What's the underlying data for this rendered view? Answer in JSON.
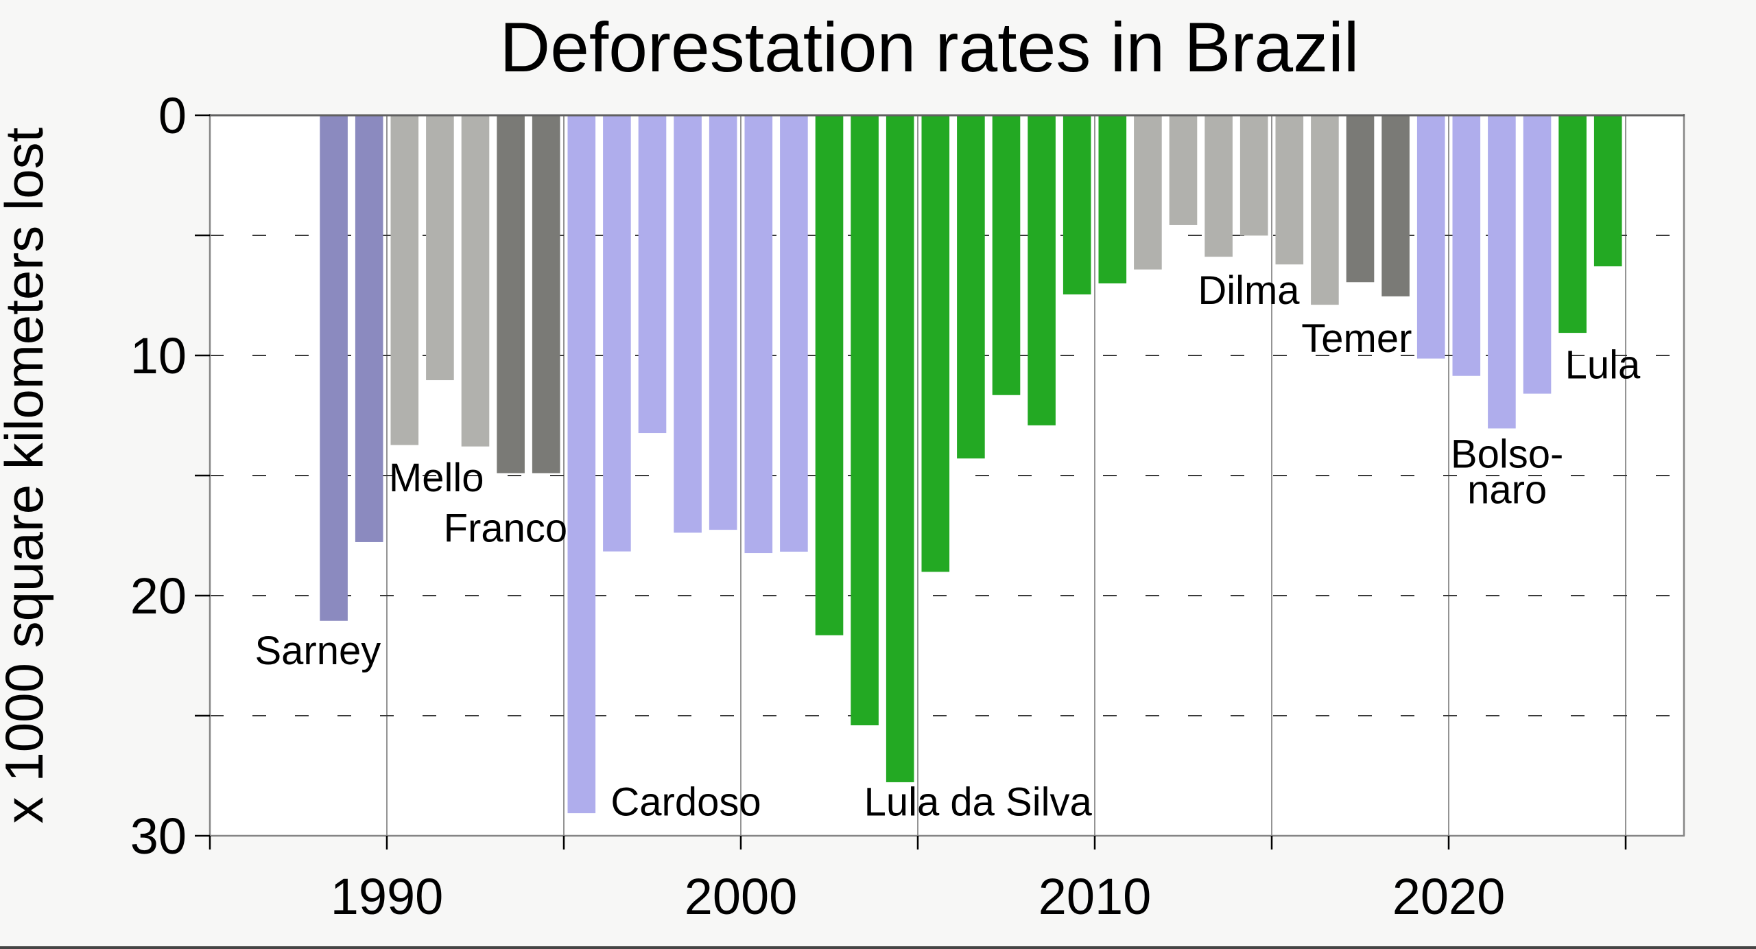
{
  "title": "Deforestation rates in Brazil",
  "colors": {
    "figure_background": "#f7f7f6",
    "plot_background": "#ffffff",
    "plot_frame": "#858585",
    "zero_line": "#606060",
    "vertical_gridline": "#949494",
    "horizontal_gridline": "#3a3a3a",
    "tick_mark": "#000000",
    "text": "#000000",
    "bottom_border": "#454545"
  },
  "chart_data": {
    "type": "bar",
    "title": "Deforestation rates in Brazil",
    "xlabel": "",
    "ylabel": "x 1000 square kilometers lost",
    "unit": "1000 square kilometers of forest lost per year",
    "y_axis_inverted_downward": true,
    "ylim": [
      0,
      30
    ],
    "xlim": [
      1985,
      2026.6
    ],
    "grid": true,
    "y_tick_labels": [
      0,
      10,
      20,
      30
    ],
    "y_tick_marks": [
      0,
      5,
      10,
      15,
      20,
      25,
      30
    ],
    "y_gridlines_dashed": [
      5,
      10,
      15,
      20,
      25
    ],
    "x_tick_labels": [
      1990,
      2000,
      2010,
      2020
    ],
    "x_tick_marks": [
      1985,
      1990,
      1995,
      2000,
      2005,
      2010,
      2015,
      2020,
      2025
    ],
    "x_gridlines": [
      1990,
      1995,
      2000,
      2005,
      2010,
      2015,
      2020,
      2025
    ],
    "presidents": [
      {
        "name": "Sarney",
        "color": "#8b8abf"
      },
      {
        "name": "Mello",
        "color": "#b1b1ad"
      },
      {
        "name": "Franco",
        "color": "#7a7a76"
      },
      {
        "name": "Cardoso",
        "color": "#afadec"
      },
      {
        "name": "Lula da Silva",
        "color": "#23a923"
      },
      {
        "name": "Dilma",
        "color": "#b1b1ad"
      },
      {
        "name": "Temer",
        "color": "#7a7a76"
      },
      {
        "name": "Bolsonaro",
        "color": "#afadec"
      },
      {
        "name": "Lula",
        "color": "#23a923"
      }
    ],
    "bars": [
      {
        "year": 1988,
        "value": 21.05,
        "president": "Sarney"
      },
      {
        "year": 1989,
        "value": 17.77,
        "president": "Sarney"
      },
      {
        "year": 1990,
        "value": 13.73,
        "president": "Mello"
      },
      {
        "year": 1991,
        "value": 11.03,
        "president": "Mello"
      },
      {
        "year": 1992,
        "value": 13.79,
        "president": "Mello"
      },
      {
        "year": 1993,
        "value": 14.9,
        "president": "Franco"
      },
      {
        "year": 1994,
        "value": 14.9,
        "president": "Franco"
      },
      {
        "year": 1995,
        "value": 29.06,
        "president": "Cardoso"
      },
      {
        "year": 1996,
        "value": 18.16,
        "president": "Cardoso"
      },
      {
        "year": 1997,
        "value": 13.23,
        "president": "Cardoso"
      },
      {
        "year": 1998,
        "value": 17.38,
        "president": "Cardoso"
      },
      {
        "year": 1999,
        "value": 17.26,
        "president": "Cardoso"
      },
      {
        "year": 2000,
        "value": 18.23,
        "president": "Cardoso"
      },
      {
        "year": 2001,
        "value": 18.17,
        "president": "Cardoso"
      },
      {
        "year": 2002,
        "value": 21.65,
        "president": "Lula da Silva"
      },
      {
        "year": 2003,
        "value": 25.4,
        "president": "Lula da Silva"
      },
      {
        "year": 2004,
        "value": 27.77,
        "president": "Lula da Silva"
      },
      {
        "year": 2005,
        "value": 19.01,
        "president": "Lula da Silva"
      },
      {
        "year": 2006,
        "value": 14.29,
        "president": "Lula da Silva"
      },
      {
        "year": 2007,
        "value": 11.65,
        "president": "Lula da Silva"
      },
      {
        "year": 2008,
        "value": 12.91,
        "president": "Lula da Silva"
      },
      {
        "year": 2009,
        "value": 7.46,
        "president": "Lula da Silva"
      },
      {
        "year": 2010,
        "value": 7.0,
        "president": "Lula da Silva"
      },
      {
        "year": 2011,
        "value": 6.42,
        "president": "Dilma"
      },
      {
        "year": 2012,
        "value": 4.57,
        "president": "Dilma"
      },
      {
        "year": 2013,
        "value": 5.89,
        "president": "Dilma"
      },
      {
        "year": 2014,
        "value": 5.01,
        "president": "Dilma"
      },
      {
        "year": 2015,
        "value": 6.21,
        "president": "Dilma"
      },
      {
        "year": 2016,
        "value": 7.89,
        "president": "Dilma"
      },
      {
        "year": 2017,
        "value": 6.95,
        "president": "Temer"
      },
      {
        "year": 2018,
        "value": 7.54,
        "president": "Temer"
      },
      {
        "year": 2019,
        "value": 10.13,
        "president": "Bolsonaro"
      },
      {
        "year": 2020,
        "value": 10.85,
        "president": "Bolsonaro"
      },
      {
        "year": 2021,
        "value": 13.04,
        "president": "Bolsonaro"
      },
      {
        "year": 2022,
        "value": 11.59,
        "president": "Bolsonaro"
      },
      {
        "year": 2023,
        "value": 9.06,
        "president": "Lula"
      },
      {
        "year": 2024,
        "value": 6.29,
        "president": "Lula"
      }
    ],
    "annotations": [
      {
        "lines": [
          "Sarney"
        ],
        "color": "#8b8abf",
        "year": 1988.05,
        "value": 22.3
      },
      {
        "lines": [
          "Mello"
        ],
        "color": "#b1b1ad",
        "year": 1991.4,
        "value": 15.1
      },
      {
        "lines": [
          "Franco"
        ],
        "color": "#000000",
        "year": 1993.35,
        "value": 17.2
      },
      {
        "lines": [
          "Cardoso"
        ],
        "color": "#afadec",
        "year": 1998.45,
        "value": 28.6
      },
      {
        "lines": [
          "Lula da Silva"
        ],
        "color": "#23a923",
        "year": 2006.7,
        "value": 28.6
      },
      {
        "lines": [
          "Dilma"
        ],
        "color": "#b1b1ad",
        "year": 2014.35,
        "value": 7.3
      },
      {
        "lines": [
          "Temer"
        ],
        "color": "#6f6f6f",
        "year": 2017.4,
        "value": 9.3
      },
      {
        "lines": [
          "Bolso-",
          "naro"
        ],
        "color": "#afadec",
        "year": 2021.65,
        "value": 14.12
      },
      {
        "lines": [
          "Lula"
        ],
        "color": "#23a923",
        "year": 2024.35,
        "value": 10.4
      }
    ]
  }
}
